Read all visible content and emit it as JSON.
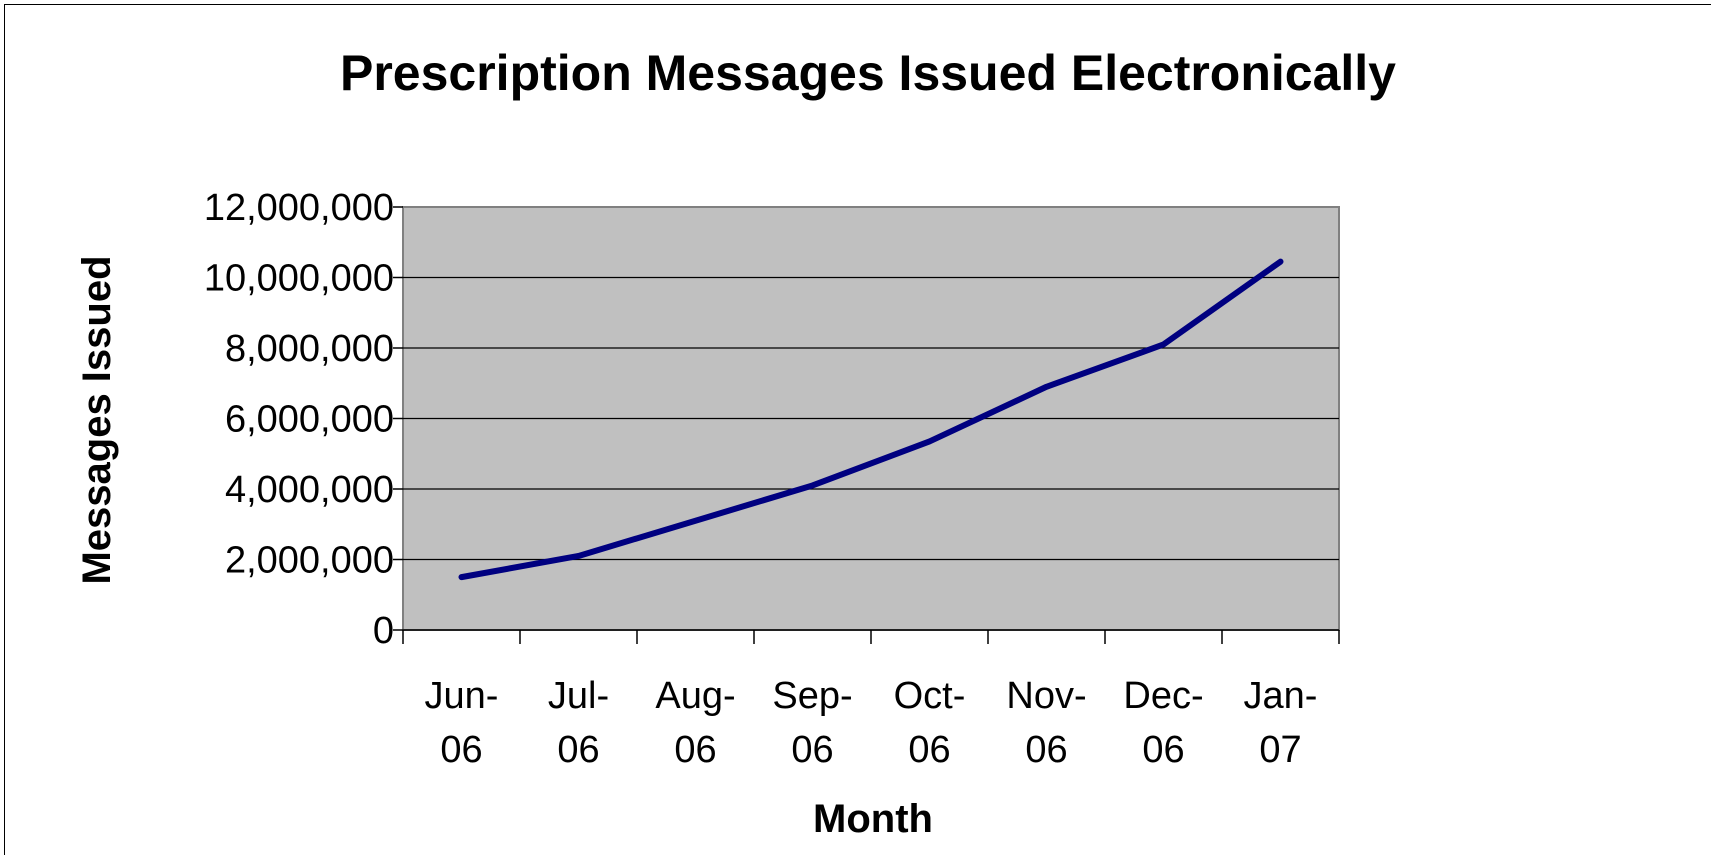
{
  "chart_data": {
    "type": "line",
    "title": "Prescription Messages Issued Electronically",
    "xlabel": "Month",
    "ylabel": "Messages Issued",
    "categories": [
      [
        "Jun-",
        "06"
      ],
      [
        "Jul-",
        "06"
      ],
      [
        "Aug-",
        "06"
      ],
      [
        "Sep-",
        "06"
      ],
      [
        "Oct-",
        "06"
      ],
      [
        "Nov-",
        "06"
      ],
      [
        "Dec-",
        "06"
      ],
      [
        "Jan-",
        "07"
      ]
    ],
    "series": [
      {
        "values": [
          1500000,
          2100000,
          3100000,
          4100000,
          5350000,
          6900000,
          8100000,
          10450000
        ],
        "color": "#000080"
      }
    ],
    "ylim": [
      0,
      12000000
    ],
    "yticks": [
      "0",
      "2,000,000",
      "4,000,000",
      "6,000,000",
      "8,000,000",
      "10,000,000",
      "12,000,000"
    ],
    "ytick_values": [
      0,
      2000000,
      4000000,
      6000000,
      8000000,
      10000000,
      12000000
    ],
    "grid": true,
    "legend": "none",
    "plot_background": "#C0C0C0"
  }
}
